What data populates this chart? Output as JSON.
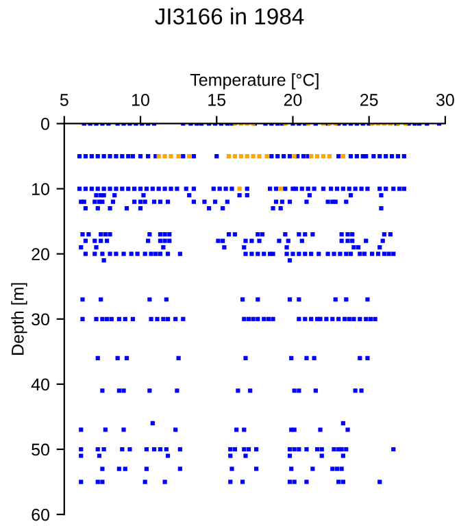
{
  "chart_data": {
    "type": "scatter",
    "title": "JI3166 in 1984",
    "xlabel": "Temperature [°C]",
    "ylabel": "Depth [m]",
    "xlim": [
      5,
      30
    ],
    "xticks": [
      5,
      10,
      15,
      20,
      25,
      30
    ],
    "ylim": [
      60,
      0
    ],
    "yticks": [
      0,
      10,
      20,
      30,
      40,
      50,
      60
    ],
    "grid": false,
    "legend": false,
    "marker": "square",
    "series": [
      {
        "color": "#0000ff",
        "x": [
          6.3,
          6.7,
          7.1,
          7.5,
          7.9,
          8.5,
          8.9,
          9.3,
          9.7,
          10.1,
          10.5,
          10.9,
          12.8,
          13.3,
          13.7,
          14.0,
          14.5,
          14.9,
          15.3,
          15.7,
          16.0,
          17.5,
          18.2,
          18.6,
          19.0,
          19.3,
          20.0,
          20.4,
          20.8,
          21.5,
          22.3,
          23.0,
          23.4,
          23.8,
          24.2,
          24.6,
          25.0,
          26.8,
          27.6,
          28.0,
          28.3,
          28.8,
          29.6
        ],
        "values": [
          0,
          0,
          0,
          0,
          0,
          0,
          0,
          0,
          0,
          0,
          0,
          0,
          0,
          0,
          0,
          0,
          0,
          0,
          0,
          0,
          0,
          0,
          0,
          0,
          0,
          0,
          0,
          0,
          0,
          0,
          0,
          0,
          0,
          0,
          0,
          0,
          0,
          0,
          0,
          0,
          0,
          0,
          0
        ]
      },
      {
        "color": "#0000ff",
        "x": [
          6.0,
          6.4,
          6.8,
          7.2,
          7.6,
          8.0,
          8.4,
          8.8,
          9.2,
          9.5,
          10.0,
          10.5,
          11.0,
          12.8,
          13.5,
          15.0,
          18.6,
          19.0,
          19.4,
          19.8,
          20.3,
          20.7,
          21.0,
          23.0,
          23.8,
          24.2,
          24.6,
          24.8,
          25.3,
          25.7,
          26.1,
          26.5,
          26.9,
          27.3
        ],
        "values": [
          5,
          5,
          5,
          5,
          5,
          5,
          5,
          5,
          5,
          5,
          5,
          5,
          5,
          5,
          5,
          5,
          5,
          5,
          5,
          5,
          5,
          5,
          5,
          5,
          5,
          5,
          5,
          5,
          5,
          5,
          5,
          5,
          5,
          5
        ]
      },
      {
        "color": "#0000ff",
        "x": [
          6.0,
          6.4,
          6.8,
          7.2,
          7.6,
          8.0,
          8.4,
          8.8,
          9.2,
          9.6,
          10.0,
          10.4,
          10.8,
          11.2,
          11.6,
          12.0,
          12.4,
          13.0,
          13.5,
          14.8,
          15.2,
          15.6,
          16.0,
          17.0,
          18.5,
          18.9,
          19.5,
          20.0,
          20.2,
          20.6,
          21.0,
          21.4,
          22.0,
          22.5,
          22.9,
          23.3,
          23.7,
          24.1,
          24.5,
          24.9,
          25.7,
          26.1,
          26.6,
          27.0,
          27.3
        ],
        "values": [
          10,
          10,
          10,
          10,
          10,
          10,
          10,
          10,
          10,
          10,
          10,
          10,
          10,
          10,
          10,
          10,
          10,
          10,
          10,
          10,
          10,
          10,
          10,
          10,
          10,
          10,
          10,
          10,
          10,
          10,
          10,
          10,
          10,
          10,
          10,
          10,
          10,
          10,
          10,
          10,
          10,
          10,
          10,
          10,
          10
        ]
      },
      {
        "color": "#0000ff",
        "x": [
          7.1,
          7.4,
          7.6,
          8.3,
          10.2,
          13.2,
          16.5,
          17.0,
          21.1,
          23.8,
          25.8
        ],
        "values": [
          11,
          11,
          11,
          11,
          11,
          11,
          11,
          11,
          11,
          11,
          11
        ]
      },
      {
        "color": "#0000ff",
        "x": [
          6.1,
          6.3,
          7.0,
          7.3,
          7.5,
          8.2,
          9.6,
          10.0,
          10.3,
          10.9,
          11.3,
          11.8,
          13.5,
          14.2,
          14.9,
          15.7,
          18.9,
          19.3,
          19.8,
          20.9,
          22.3,
          22.6,
          22.8,
          23.5
        ],
        "values": [
          12,
          12,
          12,
          12,
          12,
          12,
          12,
          12,
          12,
          12,
          12,
          12,
          12,
          12,
          12,
          12,
          12,
          12,
          12,
          12,
          12,
          12,
          12,
          12
        ]
      },
      {
        "color": "#0000ff",
        "x": [
          6.4,
          7.2,
          8.0,
          9.1,
          10.0,
          14.5,
          15.4,
          18.7,
          19.2,
          25.8
        ],
        "values": [
          13,
          13,
          13,
          13,
          13,
          13,
          13,
          13,
          13,
          13
        ]
      },
      {
        "color": "#0000ff",
        "x": [
          6.2,
          6.6,
          7.4,
          7.7,
          8.0,
          10.6,
          11.3,
          11.6,
          11.9,
          15.8,
          16.2,
          17.7,
          18.0,
          19.5,
          20.4,
          20.8,
          21.3,
          23.2,
          23.6,
          23.9,
          26.0,
          26.4
        ],
        "values": [
          17,
          17,
          17,
          17,
          17,
          17,
          17,
          17,
          17,
          17,
          17,
          17,
          17,
          17,
          17,
          17,
          17,
          17,
          17,
          17,
          17,
          17
        ]
      },
      {
        "color": "#0000ff",
        "x": [
          6.4,
          7.0,
          7.4,
          7.8,
          10.5,
          11.3,
          11.6,
          11.9,
          15.1,
          15.4,
          16.9,
          17.3,
          17.8,
          19.1,
          19.7,
          20.6,
          23.2,
          23.6,
          23.9,
          24.8,
          25.9
        ],
        "values": [
          18,
          18,
          18,
          18,
          18,
          18,
          18,
          18,
          18,
          18,
          18,
          18,
          18,
          18,
          18,
          18,
          18,
          18,
          18,
          18,
          18
        ]
      },
      {
        "color": "#0000ff",
        "x": [
          6.1,
          7.1,
          11.5,
          15.5,
          16.8,
          19.6,
          24.0,
          24.3,
          25.7
        ],
        "values": [
          19,
          19,
          19,
          19,
          19,
          19,
          19,
          19,
          19
        ]
      },
      {
        "color": "#0000ff",
        "x": [
          6.4,
          7.0,
          7.5,
          8.0,
          8.4,
          8.9,
          9.4,
          9.8,
          10.3,
          10.7,
          11.0,
          11.3,
          11.8,
          12.6,
          16.9,
          17.3,
          17.7,
          18.1,
          18.5,
          18.7,
          19.6,
          20.0,
          20.4,
          20.8,
          21.2,
          21.7,
          22.3,
          22.7,
          23.1,
          23.5,
          23.8,
          24.4,
          24.7,
          25.2,
          25.6,
          26.0,
          26.3,
          26.6
        ],
        "values": [
          20,
          20,
          20,
          20,
          20,
          20,
          20,
          20,
          20,
          20,
          20,
          20,
          20,
          20,
          20,
          20,
          20,
          20,
          20,
          20,
          20,
          20,
          20,
          20,
          20,
          20,
          20,
          20,
          20,
          20,
          20,
          20,
          20,
          20,
          20,
          20,
          20,
          20
        ]
      },
      {
        "color": "#0000ff",
        "x": [
          7.6,
          19.8
        ],
        "values": [
          21,
          21
        ]
      },
      {
        "color": "#0000ff",
        "x": [
          6.2,
          7.4,
          10.6,
          11.7,
          16.7,
          17.7,
          19.8,
          20.4,
          22.8,
          23.5,
          24.9
        ],
        "values": [
          27,
          27,
          27,
          27,
          27,
          27,
          27,
          27,
          27,
          27,
          27
        ]
      },
      {
        "color": "#0000ff",
        "x": [
          6.2,
          7.1,
          7.5,
          7.8,
          8.1,
          8.6,
          9.0,
          9.5,
          10.7,
          11.1,
          11.5,
          11.8,
          12.3,
          12.8,
          16.8,
          17.1,
          17.4,
          17.7,
          18.1,
          18.4,
          18.7,
          20.4,
          20.8,
          21.2,
          21.6,
          21.8,
          22.2,
          22.6,
          23.0,
          23.4,
          23.7,
          24.0,
          24.4,
          24.8,
          25.1,
          25.4
        ],
        "values": [
          30,
          30,
          30,
          30,
          30,
          30,
          30,
          30,
          30,
          30,
          30,
          30,
          30,
          30,
          30,
          30,
          30,
          30,
          30,
          30,
          30,
          30,
          30,
          30,
          30,
          30,
          30,
          30,
          30,
          30,
          30,
          30,
          30,
          30,
          30,
          30
        ]
      },
      {
        "color": "#0000ff",
        "x": [
          7.2,
          8.5,
          9.1,
          12.5,
          16.9,
          19.9,
          20.9,
          21.4,
          24.4,
          24.9
        ],
        "values": [
          36,
          36,
          36,
          36,
          36,
          36,
          36,
          36,
          36,
          36
        ]
      },
      {
        "color": "#0000ff",
        "x": [
          7.5,
          8.6,
          8.9,
          10.6,
          12.4,
          16.4,
          17.2,
          20.1,
          20.4,
          21.5,
          24.1,
          24.5
        ],
        "values": [
          41,
          41,
          41,
          41,
          41,
          41,
          41,
          41,
          41,
          41,
          41,
          41
        ]
      },
      {
        "color": "#0000ff",
        "x": [
          10.8,
          23.3
        ],
        "values": [
          46,
          46
        ]
      },
      {
        "color": "#0000ff",
        "x": [
          6.1,
          7.7,
          8.9,
          12.3,
          16.3,
          16.8,
          19.9,
          20.1,
          21.8,
          23.6
        ],
        "values": [
          47,
          47,
          47,
          47,
          47,
          47,
          47,
          47,
          47,
          47
        ]
      },
      {
        "color": "#0000ff",
        "x": [
          6.1,
          7.2,
          7.6,
          8.8,
          9.3,
          10.4,
          10.9,
          11.3,
          11.7,
          12.6,
          15.9,
          16.2,
          16.8,
          17.1,
          17.6,
          19.8,
          20.1,
          20.4,
          20.9,
          21.6,
          21.9,
          22.7,
          23.0,
          23.2,
          23.5,
          26.6
        ],
        "values": [
          50,
          50,
          50,
          50,
          50,
          50,
          50,
          50,
          50,
          50,
          50,
          50,
          50,
          50,
          50,
          50,
          50,
          50,
          50,
          50,
          50,
          50,
          50,
          50,
          50,
          50
        ]
      },
      {
        "color": "#0000ff",
        "x": [
          6.1,
          7.3,
          11.8,
          15.9,
          16.9,
          19.8,
          21.9,
          23.3
        ],
        "values": [
          51,
          51,
          51,
          51,
          51,
          51,
          51,
          51
        ]
      },
      {
        "color": "#0000ff",
        "x": [
          7.5,
          8.6,
          9.0,
          10.4,
          12.6,
          16.0,
          17.6,
          19.9,
          21.3,
          22.6,
          22.9,
          23.2
        ],
        "values": [
          53,
          53,
          53,
          53,
          53,
          53,
          53,
          53,
          53,
          53,
          53,
          53
        ]
      },
      {
        "color": "#0000ff",
        "x": [
          6.1,
          7.2,
          7.5,
          10.3,
          11.6,
          15.9,
          16.7,
          19.8,
          20.1,
          20.9,
          23.0,
          23.3,
          25.7
        ],
        "values": [
          55,
          55,
          55,
          55,
          55,
          55,
          55,
          55,
          55,
          55,
          55,
          55,
          55
        ]
      },
      {
        "color": "#ffa500",
        "x": [
          16.2,
          16.6,
          17.0,
          17.4,
          19.5,
          21.0,
          22.0,
          22.4,
          22.8,
          25.2,
          25.6,
          26.0,
          26.4,
          26.9,
          27.4
        ],
        "values": [
          0,
          0,
          0,
          0,
          0,
          0,
          0,
          0,
          0,
          0,
          0,
          0,
          0,
          0,
          0
        ]
      },
      {
        "color": "#ffa500",
        "x": [
          11.2,
          11.6,
          12.0,
          12.5,
          13.2,
          15.8,
          16.2,
          16.6,
          17.0,
          17.4,
          17.8,
          18.3,
          20.1,
          21.2,
          21.6,
          22.0,
          22.4,
          23.3
        ],
        "values": [
          5,
          5,
          5,
          5,
          5,
          5,
          5,
          5,
          5,
          5,
          5,
          5,
          5,
          5,
          5,
          5,
          5,
          5
        ]
      },
      {
        "color": "#ffa500",
        "x": [
          16.5,
          19.2
        ],
        "values": [
          10,
          10
        ]
      }
    ]
  }
}
